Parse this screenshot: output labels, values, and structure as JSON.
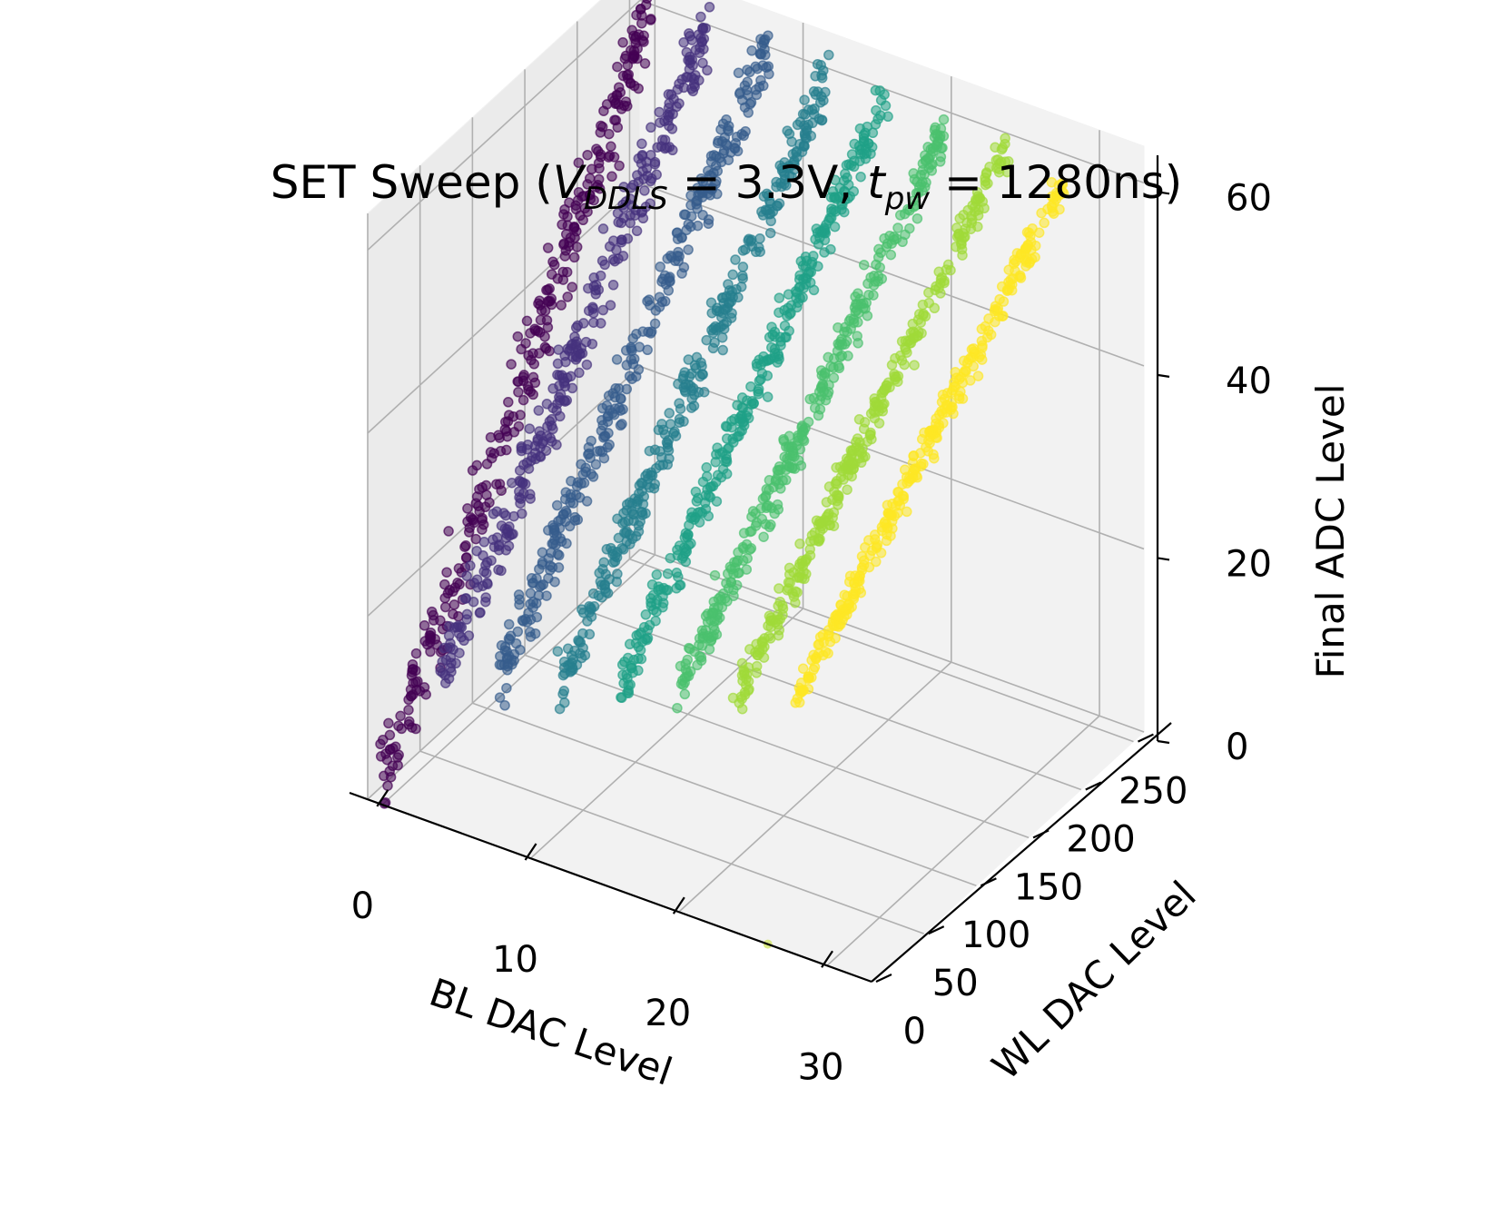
{
  "chart_data": {
    "type": "scatter",
    "projection": "3d",
    "title": {
      "prefix": "SET Sweep (",
      "v_sym": "V",
      "v_sub": "DDLS",
      "v_val": " = 3.3V, ",
      "t_sym": "t",
      "t_sub": "pw",
      "t_val": " = 1280ns)"
    },
    "xlabel": "BL DAC Level",
    "ylabel": "WL DAC Level",
    "zlabel": "Final ADC Level",
    "xlim": [
      -1,
      33
    ],
    "ylim": [
      0,
      260
    ],
    "zlim": [
      0,
      64
    ],
    "xticks": [
      0,
      10,
      20,
      30
    ],
    "xtick_labels": [
      "0",
      "10",
      "20",
      "30"
    ],
    "yticks": [
      0,
      50,
      100,
      150,
      200,
      250
    ],
    "ytick_labels": [
      "0",
      "50",
      "100",
      "150",
      "200",
      "250"
    ],
    "zticks": [
      0,
      20,
      40,
      60
    ],
    "ztick_labels": [
      "0",
      "20",
      "40",
      "60"
    ],
    "grid": true,
    "colormap": "viridis",
    "colors": [
      "#440154",
      "#46327e",
      "#365c8d",
      "#277f8e",
      "#1fa187",
      "#4ac16d",
      "#a0da39",
      "#fde725"
    ],
    "series": [
      {
        "x": 0,
        "color": "#440154",
        "y_range": [
          0,
          255
        ],
        "z_start": 2,
        "z_end": 60,
        "spread": 7
      },
      {
        "x": 4,
        "color": "#46327e",
        "y_range": [
          0,
          255
        ],
        "z_start": 16,
        "z_end": 61,
        "spread": 6
      },
      {
        "x": 8,
        "color": "#365c8d",
        "y_range": [
          0,
          255
        ],
        "z_start": 19,
        "z_end": 61,
        "spread": 5
      },
      {
        "x": 12,
        "color": "#277f8e",
        "y_range": [
          0,
          255
        ],
        "z_start": 20,
        "z_end": 60,
        "spread": 4.5
      },
      {
        "x": 16,
        "color": "#1fa187",
        "y_range": [
          0,
          255
        ],
        "z_start": 22,
        "z_end": 60,
        "spread": 4
      },
      {
        "x": 20,
        "color": "#4ac16d",
        "y_range": [
          0,
          255
        ],
        "z_start": 24,
        "z_end": 59,
        "spread": 3.5
      },
      {
        "x": 24,
        "color": "#a0da39",
        "y_range": [
          0,
          255
        ],
        "z_start": 26,
        "z_end": 59,
        "spread": 3
      },
      {
        "x": 28,
        "color": "#fde725",
        "y_range": [
          0,
          255
        ],
        "z_start": 28,
        "z_end": 58,
        "spread": 2.5
      }
    ],
    "outliers": [
      {
        "x": 26,
        "y": 0,
        "z": 0,
        "color": "#c6e03b"
      }
    ]
  }
}
